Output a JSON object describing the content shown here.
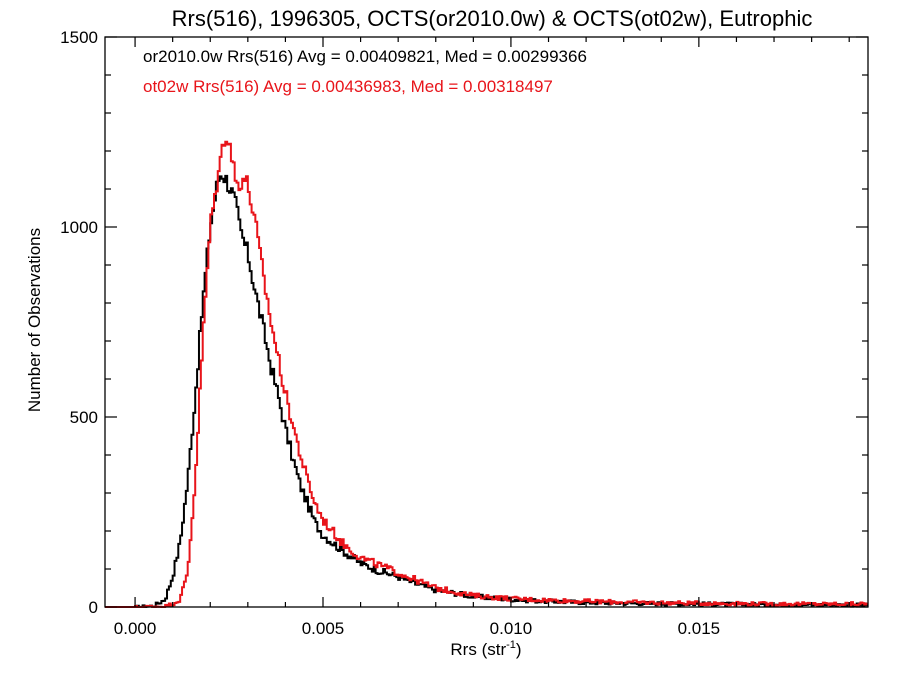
{
  "chart_data": {
    "type": "line",
    "title": "Rrs(516), 1996305, OCTS(or2010.0w) & OCTS(ot02w), Eutrophic",
    "xlabel_main": "Rrs (str",
    "xlabel_sup": "-1",
    "xlabel_close": ")",
    "ylabel": "Number of Observations",
    "xlim": [
      -0.0008,
      0.0195
    ],
    "ylim": [
      0,
      1500
    ],
    "x_ticks": [
      0.0,
      0.005,
      0.01,
      0.015
    ],
    "x_tick_labels": [
      "0.000",
      "0.005",
      "0.010",
      "0.015"
    ],
    "y_ticks": [
      0,
      500,
      1000,
      1500
    ],
    "y_tick_labels": [
      "0",
      "500",
      "1000",
      "1500"
    ],
    "grid": false,
    "legend_position": "top-left",
    "series": [
      {
        "name": "or2010.0w Rrs(516) Avg = 0.00409821, Med = 0.00299366",
        "color": "#000000",
        "step": "histogram",
        "points": [
          [
            -0.0008,
            0
          ],
          [
            0.0,
            0
          ],
          [
            0.0005,
            3
          ],
          [
            0.0008,
            20
          ],
          [
            0.001,
            80
          ],
          [
            0.0012,
            170
          ],
          [
            0.0014,
            330
          ],
          [
            0.0016,
            550
          ],
          [
            0.0018,
            800
          ],
          [
            0.002,
            1000
          ],
          [
            0.0022,
            1120
          ],
          [
            0.0023,
            1145
          ],
          [
            0.0024,
            1130
          ],
          [
            0.0025,
            1110
          ],
          [
            0.0026,
            1085
          ],
          [
            0.0027,
            1050
          ],
          [
            0.0028,
            990
          ],
          [
            0.003,
            930
          ],
          [
            0.0032,
            830
          ],
          [
            0.0034,
            740
          ],
          [
            0.0036,
            640
          ],
          [
            0.0038,
            560
          ],
          [
            0.004,
            470
          ],
          [
            0.0042,
            390
          ],
          [
            0.0044,
            320
          ],
          [
            0.0046,
            270
          ],
          [
            0.0048,
            220
          ],
          [
            0.005,
            190
          ],
          [
            0.0055,
            150
          ],
          [
            0.006,
            115
          ],
          [
            0.0065,
            95
          ],
          [
            0.007,
            80
          ],
          [
            0.0075,
            60
          ],
          [
            0.008,
            45
          ],
          [
            0.009,
            28
          ],
          [
            0.01,
            20
          ],
          [
            0.011,
            15
          ],
          [
            0.012,
            12
          ],
          [
            0.013,
            10
          ],
          [
            0.014,
            9
          ],
          [
            0.015,
            8
          ],
          [
            0.016,
            7
          ],
          [
            0.017,
            6
          ],
          [
            0.018,
            6
          ],
          [
            0.0195,
            5
          ]
        ]
      },
      {
        "name": "ot02w Rrs(516) Avg = 0.00436983, Med = 0.00318497",
        "color": "#e8141a",
        "step": "histogram",
        "points": [
          [
            -0.0008,
            0
          ],
          [
            0.0,
            0
          ],
          [
            0.0008,
            2
          ],
          [
            0.001,
            8
          ],
          [
            0.0012,
            20
          ],
          [
            0.0014,
            90
          ],
          [
            0.0016,
            330
          ],
          [
            0.0018,
            700
          ],
          [
            0.002,
            1000
          ],
          [
            0.0022,
            1130
          ],
          [
            0.0024,
            1250
          ],
          [
            0.0025,
            1230
          ],
          [
            0.0026,
            1170
          ],
          [
            0.0027,
            1110
          ],
          [
            0.0028,
            1120
          ],
          [
            0.0029,
            1130
          ],
          [
            0.003,
            1110
          ],
          [
            0.0032,
            1010
          ],
          [
            0.0034,
            880
          ],
          [
            0.0036,
            760
          ],
          [
            0.0038,
            660
          ],
          [
            0.004,
            560
          ],
          [
            0.0042,
            480
          ],
          [
            0.0044,
            400
          ],
          [
            0.0046,
            330
          ],
          [
            0.0048,
            270
          ],
          [
            0.005,
            230
          ],
          [
            0.0055,
            170
          ],
          [
            0.006,
            130
          ],
          [
            0.0065,
            110
          ],
          [
            0.007,
            90
          ],
          [
            0.0075,
            70
          ],
          [
            0.008,
            50
          ],
          [
            0.009,
            30
          ],
          [
            0.01,
            22
          ],
          [
            0.011,
            18
          ],
          [
            0.012,
            15
          ],
          [
            0.013,
            13
          ],
          [
            0.014,
            11
          ],
          [
            0.015,
            10
          ],
          [
            0.016,
            9
          ],
          [
            0.017,
            8
          ],
          [
            0.018,
            8
          ],
          [
            0.0195,
            8
          ]
        ]
      }
    ]
  }
}
